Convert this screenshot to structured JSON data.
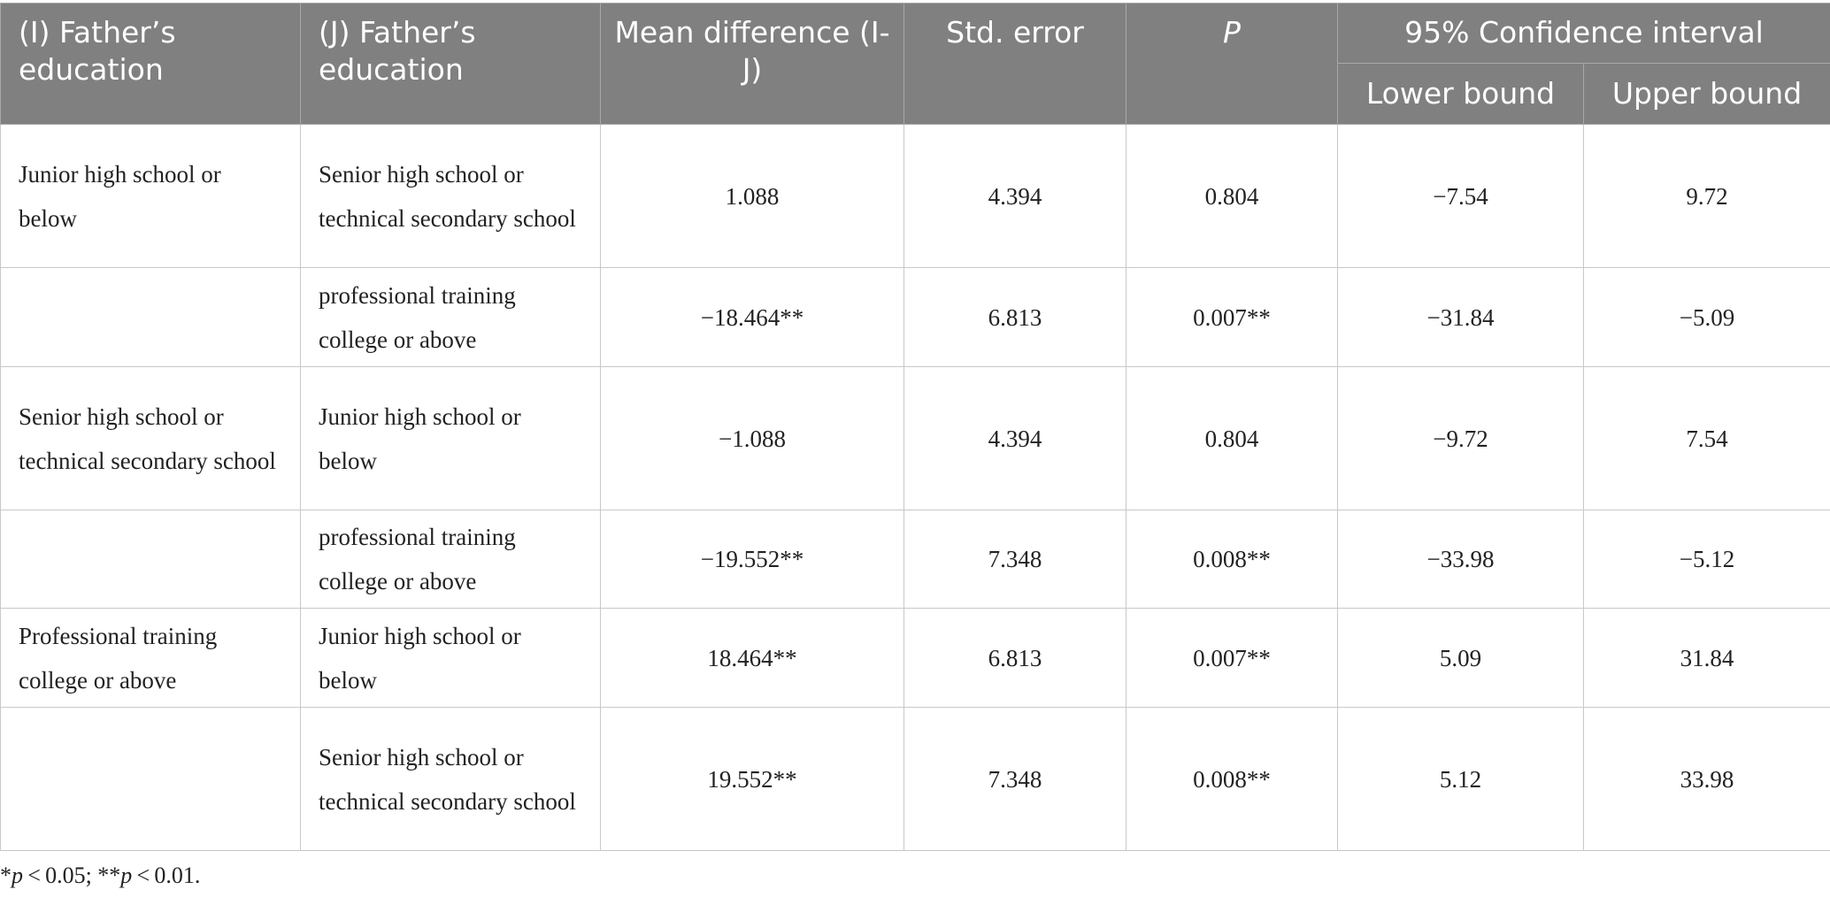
{
  "table": {
    "headers": {
      "col_i": "(I) Father’s education",
      "col_j": "(J) Father’s education",
      "col_mean": "Mean difference (I-J)",
      "col_se": "Std. error",
      "col_p": "P",
      "col_ci": "95% Confidence interval",
      "col_lower": "Lower bound",
      "col_upper": "Upper bound"
    },
    "rows": [
      {
        "i": "Junior high school or below",
        "j": "Senior high school or technical secondary school",
        "mean": "1.088",
        "se": "4.394",
        "p": "0.804",
        "lower": "−7.54",
        "upper": "9.72"
      },
      {
        "i": "",
        "j": "professional training college or above",
        "mean": "−18.464**",
        "se": "6.813",
        "p": "0.007**",
        "lower": "−31.84",
        "upper": "−5.09"
      },
      {
        "i": "Senior high school or technical secondary school",
        "j": "Junior high school or below",
        "mean": "−1.088",
        "se": "4.394",
        "p": "0.804",
        "lower": "−9.72",
        "upper": "7.54"
      },
      {
        "i": "",
        "j": "professional training college or above",
        "mean": "−19.552**",
        "se": "7.348",
        "p": "0.008**",
        "lower": "−33.98",
        "upper": "−5.12"
      },
      {
        "i": "Professional training college or above",
        "j": "Junior high school or below",
        "mean": "18.464**",
        "se": "6.813",
        "p": "0.007**",
        "lower": "5.09",
        "upper": "31.84"
      },
      {
        "i": "",
        "j": "Senior high school or technical secondary school",
        "mean": "19.552**",
        "se": "7.348",
        "p": "0.008**",
        "lower": "5.12",
        "upper": "33.98"
      }
    ]
  },
  "footnote": {
    "star1": "*",
    "p1": "p",
    "text1": " < 0.05; **",
    "p2": "p",
    "text2": " < 0.01."
  }
}
